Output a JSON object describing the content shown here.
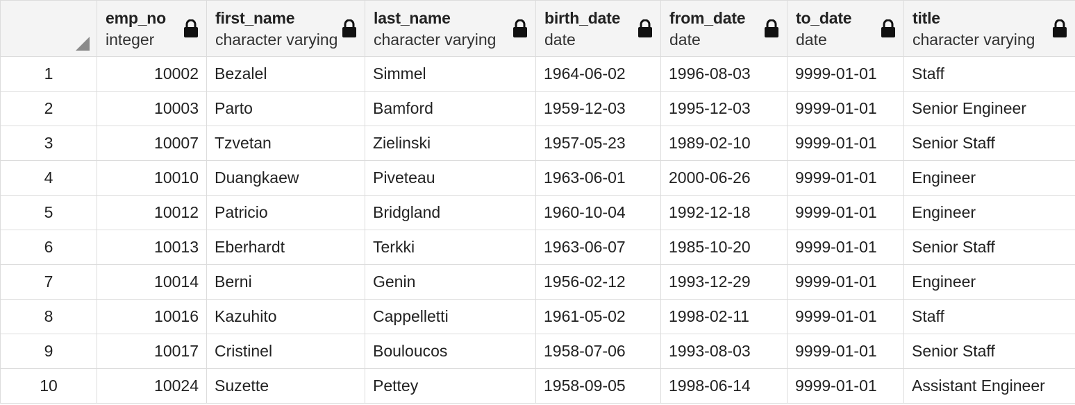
{
  "columns": [
    {
      "name": "emp_no",
      "type": "integer"
    },
    {
      "name": "first_name",
      "type": "character varying"
    },
    {
      "name": "last_name",
      "type": "character varying"
    },
    {
      "name": "birth_date",
      "type": "date"
    },
    {
      "name": "from_date",
      "type": "date"
    },
    {
      "name": "to_date",
      "type": "date"
    },
    {
      "name": "title",
      "type": "character varying"
    }
  ],
  "rows": [
    {
      "n": "1",
      "emp_no": "10002",
      "first_name": "Bezalel",
      "last_name": "Simmel",
      "birth_date": "1964-06-02",
      "from_date": "1996-08-03",
      "to_date": "9999-01-01",
      "title": "Staff"
    },
    {
      "n": "2",
      "emp_no": "10003",
      "first_name": "Parto",
      "last_name": "Bamford",
      "birth_date": "1959-12-03",
      "from_date": "1995-12-03",
      "to_date": "9999-01-01",
      "title": "Senior Engineer"
    },
    {
      "n": "3",
      "emp_no": "10007",
      "first_name": "Tzvetan",
      "last_name": "Zielinski",
      "birth_date": "1957-05-23",
      "from_date": "1989-02-10",
      "to_date": "9999-01-01",
      "title": "Senior Staff"
    },
    {
      "n": "4",
      "emp_no": "10010",
      "first_name": "Duangkaew",
      "last_name": "Piveteau",
      "birth_date": "1963-06-01",
      "from_date": "2000-06-26",
      "to_date": "9999-01-01",
      "title": "Engineer"
    },
    {
      "n": "5",
      "emp_no": "10012",
      "first_name": "Patricio",
      "last_name": "Bridgland",
      "birth_date": "1960-10-04",
      "from_date": "1992-12-18",
      "to_date": "9999-01-01",
      "title": "Engineer"
    },
    {
      "n": "6",
      "emp_no": "10013",
      "first_name": "Eberhardt",
      "last_name": "Terkki",
      "birth_date": "1963-06-07",
      "from_date": "1985-10-20",
      "to_date": "9999-01-01",
      "title": "Senior Staff"
    },
    {
      "n": "7",
      "emp_no": "10014",
      "first_name": "Berni",
      "last_name": "Genin",
      "birth_date": "1956-02-12",
      "from_date": "1993-12-29",
      "to_date": "9999-01-01",
      "title": "Engineer"
    },
    {
      "n": "8",
      "emp_no": "10016",
      "first_name": "Kazuhito",
      "last_name": "Cappelletti",
      "birth_date": "1961-05-02",
      "from_date": "1998-02-11",
      "to_date": "9999-01-01",
      "title": "Staff"
    },
    {
      "n": "9",
      "emp_no": "10017",
      "first_name": "Cristinel",
      "last_name": "Bouloucos",
      "birth_date": "1958-07-06",
      "from_date": "1993-08-03",
      "to_date": "9999-01-01",
      "title": "Senior Staff"
    },
    {
      "n": "10",
      "emp_no": "10024",
      "first_name": "Suzette",
      "last_name": "Pettey",
      "birth_date": "1958-09-05",
      "from_date": "1998-06-14",
      "to_date": "9999-01-01",
      "title": "Assistant Engineer"
    }
  ],
  "icons": {
    "lock": "lock-icon",
    "corner": "select-all-corner-icon"
  }
}
